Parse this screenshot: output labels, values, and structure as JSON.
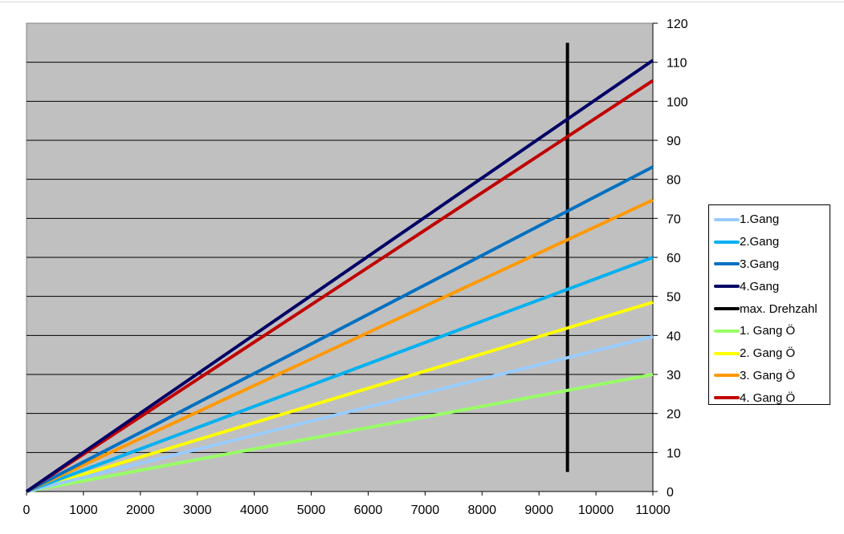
{
  "chart_data": {
    "type": "line",
    "title": "",
    "xlabel": "",
    "ylabel": "",
    "xlim": [
      0,
      11000
    ],
    "ylim": [
      0,
      120
    ],
    "x_ticks": [
      "0",
      "1000",
      "2000",
      "3000",
      "4000",
      "5000",
      "6000",
      "7000",
      "8000",
      "9000",
      "10000",
      "11000"
    ],
    "y_ticks": [
      "0",
      "10",
      "20",
      "30",
      "40",
      "50",
      "60",
      "70",
      "80",
      "90",
      "100",
      "110",
      "120"
    ],
    "y_axis_side": "right",
    "grid": "horizontal",
    "plot_background": "#c0c0c0",
    "legend_position": "right",
    "series": [
      {
        "name": "1.Gang",
        "color": "#99ccff",
        "x": [
          0,
          11000
        ],
        "y": [
          0,
          39.7
        ]
      },
      {
        "name": "2.Gang",
        "color": "#00b0f0",
        "x": [
          0,
          11000
        ],
        "y": [
          0,
          60
        ]
      },
      {
        "name": "3.Gang",
        "color": "#0070c0",
        "x": [
          0,
          11000
        ],
        "y": [
          0,
          83.2
        ]
      },
      {
        "name": "4.Gang",
        "color": "#000066",
        "x": [
          0,
          11000
        ],
        "y": [
          0,
          110.5
        ]
      },
      {
        "name": "max. Drehzahl",
        "color": "#000000",
        "x": [
          9500,
          9500
        ],
        "y": [
          5,
          115
        ]
      },
      {
        "name": "1. Gang Ö",
        "color": "#99ff66",
        "x": [
          0,
          11000
        ],
        "y": [
          0,
          30
        ]
      },
      {
        "name": "2. Gang Ö",
        "color": "#ffff00",
        "x": [
          0,
          11000
        ],
        "y": [
          0,
          48.5
        ]
      },
      {
        "name": "3. Gang Ö",
        "color": "#ff9900",
        "x": [
          0,
          11000
        ],
        "y": [
          0,
          74.7
        ]
      },
      {
        "name": "4. Gang Ö",
        "color": "#c00000",
        "x": [
          0,
          11000
        ],
        "y": [
          0,
          105.3
        ]
      }
    ]
  }
}
